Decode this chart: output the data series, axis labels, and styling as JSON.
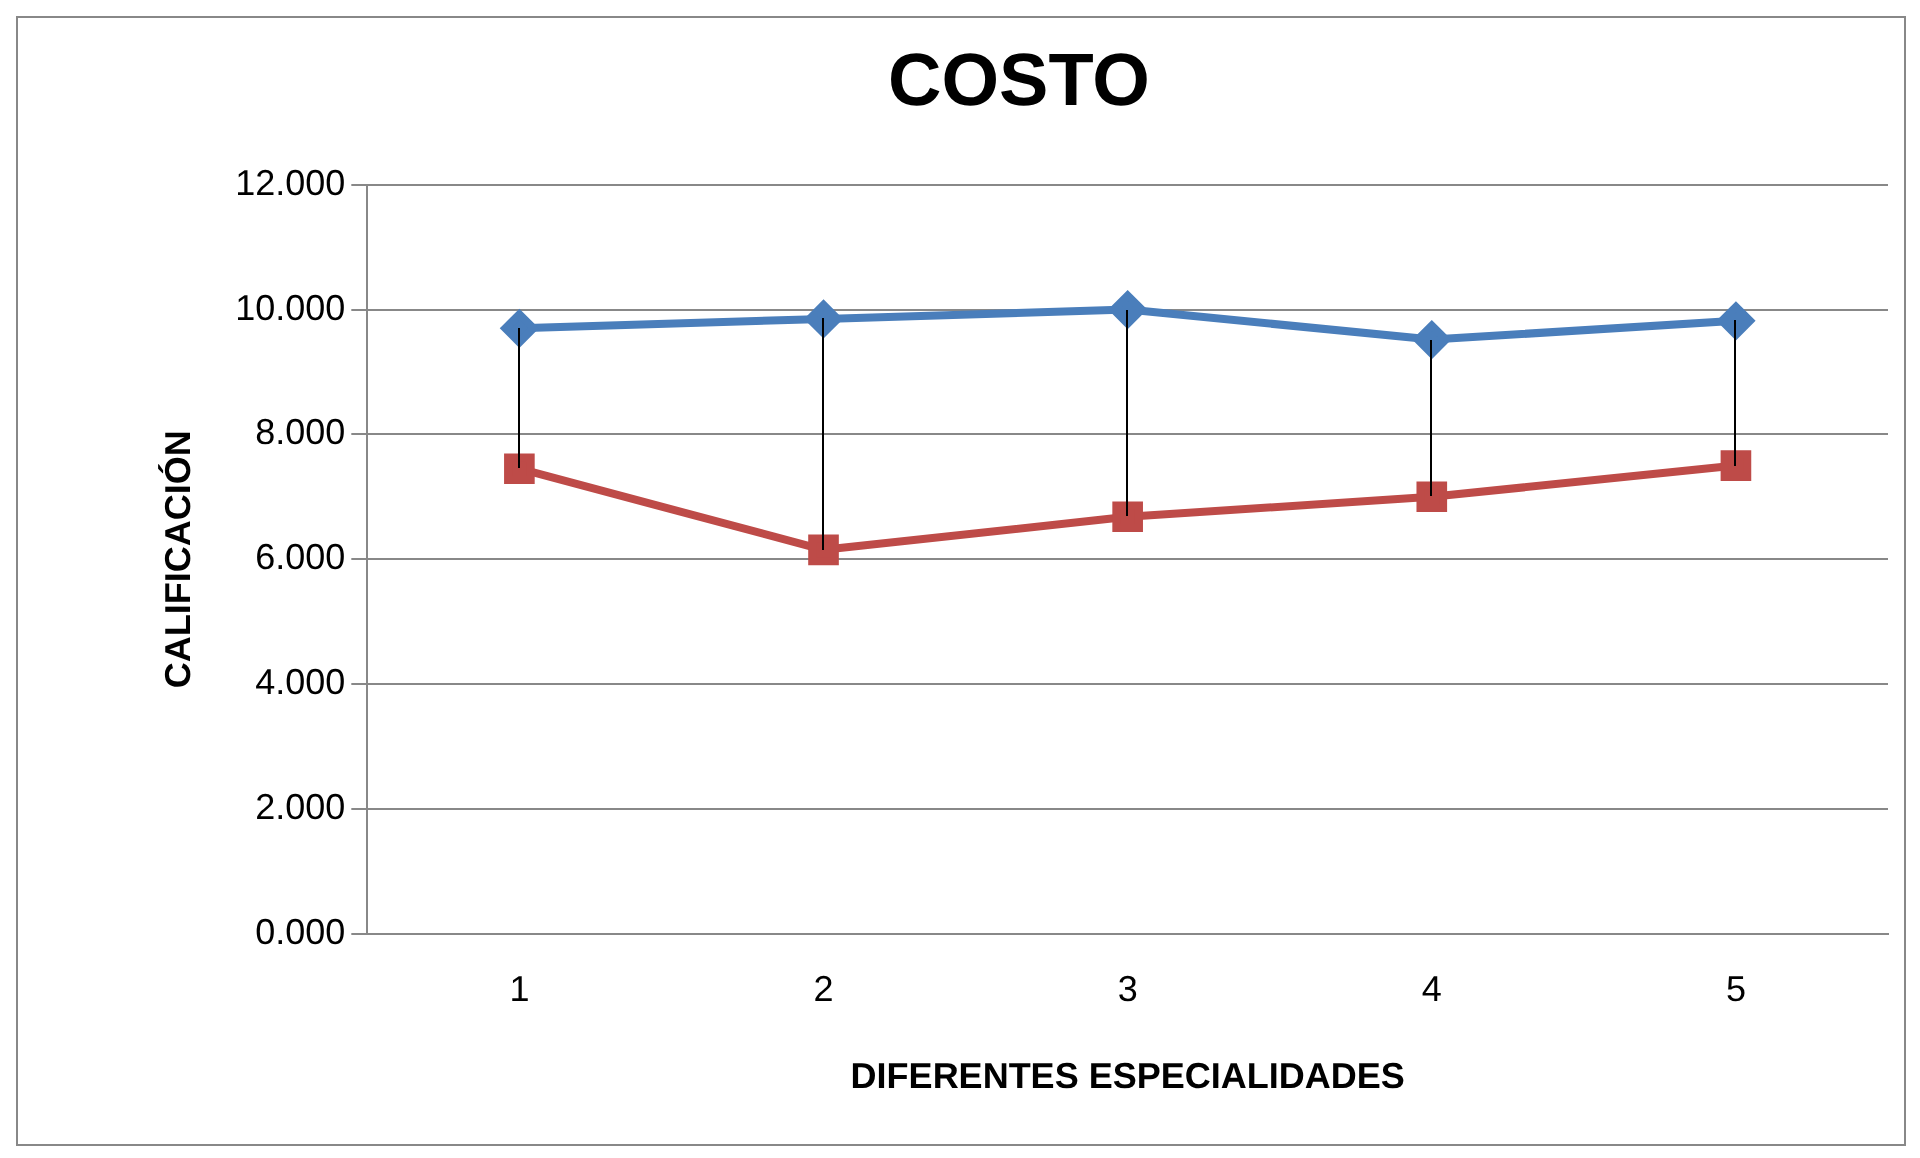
{
  "chart_data": {
    "type": "line",
    "title": "COSTO",
    "xlabel": "DIFERENTES ESPECIALIDADES",
    "ylabel": "CALIFICACIÓN",
    "categories": [
      "1",
      "2",
      "3",
      "4",
      "5"
    ],
    "series": [
      {
        "color": "#4a7ebb",
        "marker": "diamond",
        "values": [
          9.7,
          9.85,
          10.0,
          9.52,
          9.82
        ]
      },
      {
        "color": "#be4b48",
        "marker": "square",
        "values": [
          7.45,
          6.15,
          6.68,
          7.0,
          7.5
        ]
      }
    ],
    "ylim": [
      0,
      12
    ],
    "yticks": [
      {
        "value": 0,
        "label": "0.000"
      },
      {
        "value": 2,
        "label": "2.000"
      },
      {
        "value": 4,
        "label": "4.000"
      },
      {
        "value": 6,
        "label": "6.000"
      },
      {
        "value": 8,
        "label": "8.000"
      },
      {
        "value": 10,
        "label": "10.000"
      },
      {
        "value": 12,
        "label": "12.000"
      }
    ],
    "grid": "y",
    "legend": false,
    "line_style": "solid"
  }
}
